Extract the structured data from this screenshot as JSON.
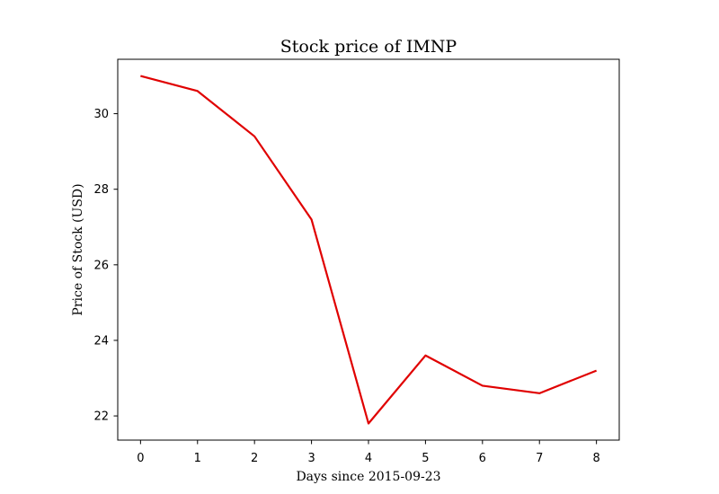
{
  "chart_data": {
    "type": "line",
    "title": "Stock price of IMNP",
    "xlabel": "Days since 2015-09-23",
    "ylabel": "Price of Stock (USD)",
    "x": [
      0,
      1,
      2,
      3,
      4,
      5,
      6,
      7,
      8
    ],
    "series": [
      {
        "values": [
          31.0,
          30.6,
          29.4,
          27.2,
          21.8,
          23.6,
          22.8,
          22.6,
          23.2
        ],
        "color": "#e00000"
      }
    ],
    "xticks": [
      "0",
      "1",
      "2",
      "3",
      "4",
      "5",
      "6",
      "7",
      "8"
    ],
    "yticks": [
      "22",
      "24",
      "26",
      "28",
      "30"
    ],
    "xlim": [
      -0.4,
      8.4
    ],
    "ylim": [
      21.36,
      31.44
    ],
    "grid": false,
    "legend": "none"
  }
}
